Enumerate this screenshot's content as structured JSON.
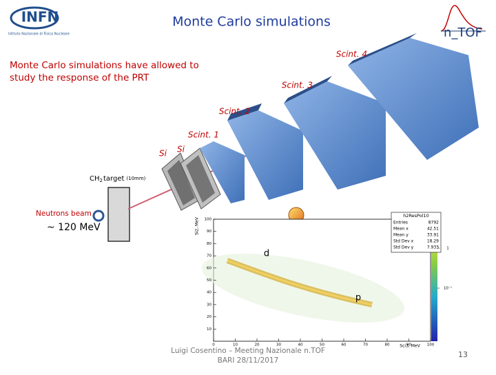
{
  "header": {
    "title": "Monte Carlo simulations",
    "logo_left": "INFN",
    "logo_left_sub": "Istituto Nazionale di Fisica Nucleare",
    "logo_right": "n_TOF"
  },
  "description": "Monte Carlo simulations have allowed to study the response of the PRT",
  "setup": {
    "scint4": "Scint. 4",
    "scint3": "Scint. 3",
    "scint2": "Scint. 2",
    "scint1": "Scint. 1",
    "si_left": "Si",
    "si_right": "Si",
    "target": {
      "base": "CH",
      "sub": "2",
      "text": "target",
      "size": "(10mm)"
    },
    "beam": "Neutrons beam",
    "energy": "~ 120 MeV"
  },
  "plot": {
    "title": "h2ResPol10",
    "stats": [
      [
        "Entries",
        "8792"
      ],
      [
        "Mean x",
        "42.51"
      ],
      [
        "Mean y",
        "33.91"
      ],
      [
        "Std Dev x",
        "18.29"
      ],
      [
        "Std Dev y",
        "7.933"
      ]
    ],
    "xlabel": "Sci3, MeV",
    "ylabel": "Si2, MeV",
    "xlim": [
      0,
      100
    ],
    "xticks": [
      0,
      10,
      20,
      30,
      40,
      50,
      60,
      70,
      80,
      90,
      100
    ],
    "ylim": [
      0,
      100
    ],
    "yticks": [
      10,
      20,
      30,
      40,
      50,
      60,
      70,
      80,
      90,
      100
    ],
    "zticks": [
      {
        "value": 1,
        "label": "1"
      },
      {
        "value": 0.1,
        "label": "10⁻¹"
      }
    ],
    "label_d": "d",
    "label_p": "p"
  },
  "footer": {
    "author": "Luigi Cosentino – Meeting Nazionale n.TOF",
    "place_date": "BARI 28/11/2017",
    "page": "13"
  }
}
